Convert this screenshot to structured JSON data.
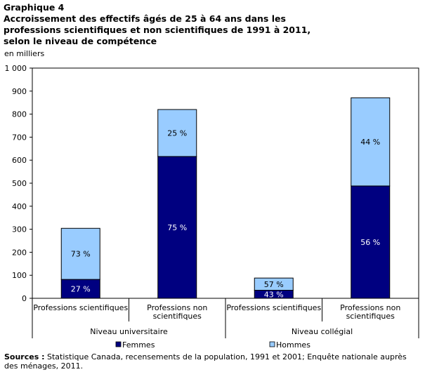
{
  "chart_data": {
    "type": "bar",
    "stacked": true,
    "title_lines": [
      "Graphique  4",
      "Accroissement des effectifs âgés de 25 à 64 ans dans les",
      "professions  scientifiques  et non scientifiques  de 1991  à 2011,",
      "selon le niveau de compétence"
    ],
    "unit_label": "en milliers",
    "ylim": [
      0,
      1000
    ],
    "yticks": [
      0,
      100,
      200,
      300,
      400,
      500,
      600,
      700,
      800,
      900,
      1000
    ],
    "ytick_labels": [
      "0",
      "100",
      "200",
      "300",
      "400",
      "500",
      "600",
      "700",
      "800",
      "900",
      "1 000"
    ],
    "groups": [
      "Niveau universitaire",
      "Niveau collégial"
    ],
    "categories": [
      [
        "Professions scientifiques"
      ],
      [
        "Professions non",
        "scientifiques"
      ],
      [
        "Professions scientifiques"
      ],
      [
        "Professions non",
        "scientifiques"
      ]
    ],
    "series": [
      {
        "name": "Femmes",
        "color": "#000080",
        "label_color": "#ffffff",
        "values": [
          82,
          616,
          35,
          488
        ],
        "pct_labels": [
          "27 %",
          "75 %",
          "43 %",
          "56 %"
        ]
      },
      {
        "name": "Hommes",
        "color": "#99ccff",
        "label_color": "#000000",
        "values": [
          222,
          204,
          53,
          383
        ],
        "pct_labels": [
          "73 %",
          "25 %",
          "57 %",
          "44 %"
        ]
      }
    ],
    "legend_placement": "bottom",
    "grid": false
  },
  "sources": {
    "label": "Sources :",
    "text": " Statistique Canada, recensements de la population, 1991 et 2001; Enquête nationale auprès des ménages, 2011."
  }
}
